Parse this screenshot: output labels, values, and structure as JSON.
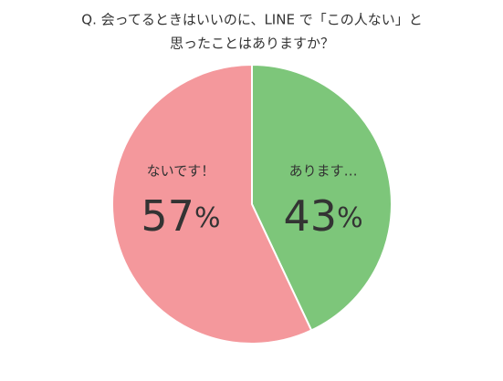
{
  "chart_data": {
    "type": "pie",
    "title": [
      "Q. 会ってるときはいいのに、LINE で「この人ない」と",
      "思ったことはありますか？"
    ],
    "categories": [
      "あります…",
      "ないです！"
    ],
    "values": [
      43,
      57
    ],
    "value_labels": [
      "43%",
      "57%"
    ],
    "colors": [
      "#7dc67a",
      "#f4989c"
    ]
  }
}
